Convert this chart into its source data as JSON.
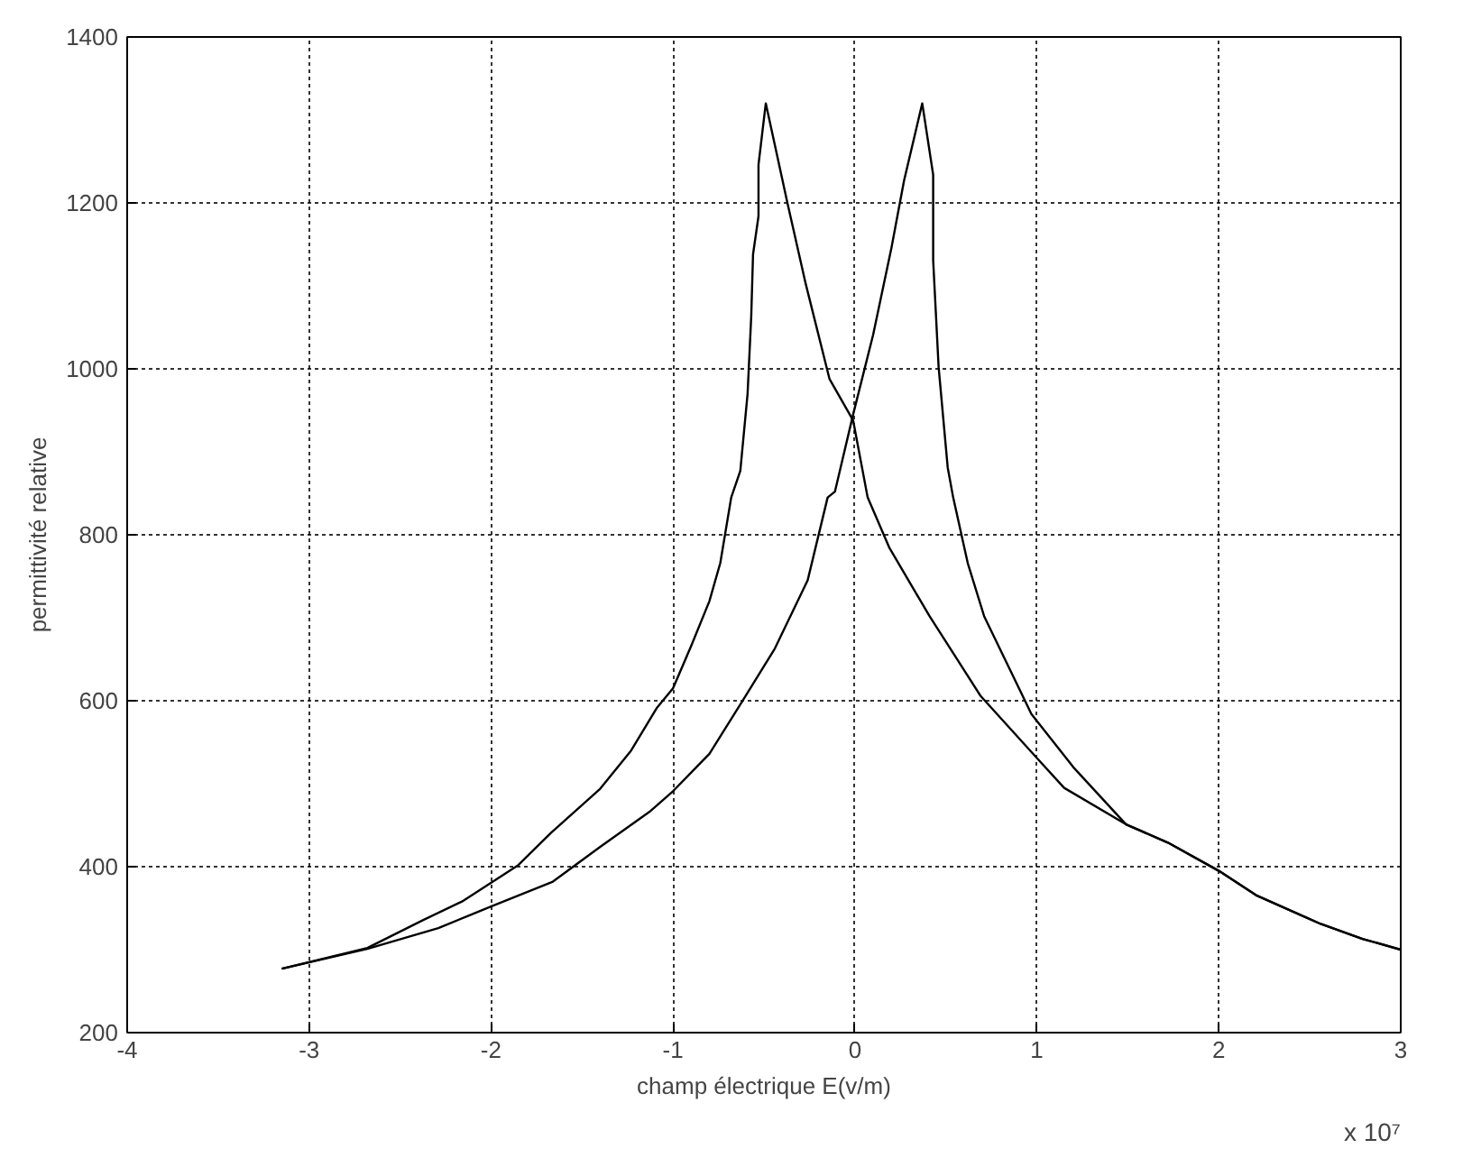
{
  "chart_data": {
    "type": "line",
    "xlabel": "champ électrique E(v/m)",
    "ylabel": "permittivité relative",
    "annotations": [
      "x 10⁷"
    ],
    "xlim": [
      -4,
      3
    ],
    "ylim": [
      200,
      1400
    ],
    "xticks": [
      -4,
      -3,
      -2,
      -1,
      0,
      1,
      2,
      3
    ],
    "yticks": [
      200,
      400,
      600,
      800,
      1000,
      1200,
      1400
    ],
    "grid": true,
    "line_style": "solid",
    "marker": "none",
    "series": [
      {
        "color": "#000000",
        "x": [
          -3.15,
          -2.68,
          -2.37,
          -2.16,
          -1.85,
          -1.67,
          -1.4,
          -1.23,
          -1.09,
          -1.0,
          -0.9,
          -0.8,
          -0.74,
          -0.68,
          -0.63,
          -0.59,
          -0.57,
          -0.56,
          -0.53,
          -0.53,
          -0.49,
          -0.37,
          -0.27,
          -0.14,
          -0.01,
          0.07,
          0.19,
          0.41,
          0.69,
          1.0,
          1.15,
          1.49,
          1.72,
          2.0,
          2.21,
          2.56,
          2.79,
          3.0
        ],
        "values": [
          277,
          302,
          336,
          358,
          402,
          441,
          494,
          540,
          591,
          615,
          666,
          720,
          766,
          845,
          877,
          970,
          1063,
          1138,
          1184,
          1246,
          1320,
          1199,
          1102,
          988,
          938,
          845,
          784,
          702,
          606,
          531,
          495,
          451,
          429,
          395,
          365,
          331,
          313,
          300
        ]
      },
      {
        "color": "#000000",
        "x": [
          -3.15,
          -2.68,
          -2.29,
          -2.0,
          -1.66,
          -1.4,
          -1.13,
          -1.0,
          -0.8,
          -0.62,
          -0.44,
          -0.26,
          -0.15,
          -0.11,
          -0.01,
          0.1,
          0.2,
          0.27,
          0.37,
          0.43,
          0.43,
          0.46,
          0.51,
          0.54,
          0.62,
          0.71,
          0.97,
          1.2,
          1.49,
          1.72,
          2.0,
          2.21,
          2.56,
          2.79,
          3.0
        ],
        "values": [
          277,
          301,
          326,
          352,
          382,
          424,
          466,
          491,
          536,
          599,
          663,
          745,
          845,
          852,
          945,
          1041,
          1145,
          1227,
          1320,
          1234,
          1131,
          1002,
          881,
          845,
          766,
          702,
          584,
          520,
          451,
          429,
          395,
          365,
          331,
          313,
          300
        ]
      }
    ]
  }
}
